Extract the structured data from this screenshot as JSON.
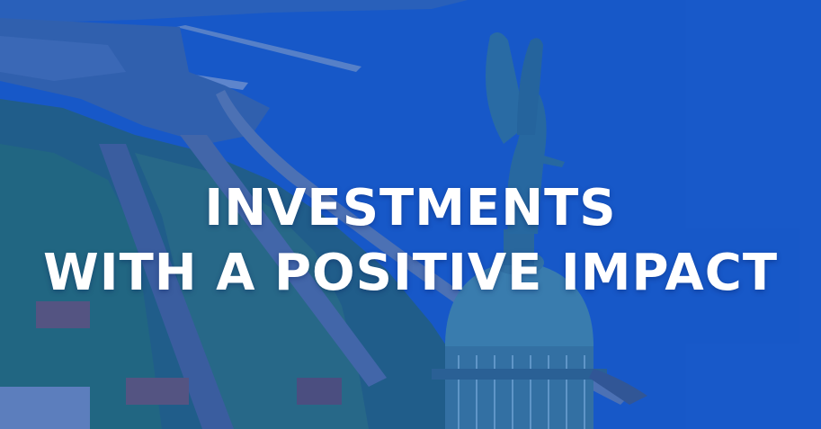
{
  "hero": {
    "headline_line1": "INVESTMENTS",
    "headline_line2": "WITH A POSITIVE IMPACT",
    "overlay_color": "#1f5ac4",
    "text_color": "#ffffff"
  }
}
